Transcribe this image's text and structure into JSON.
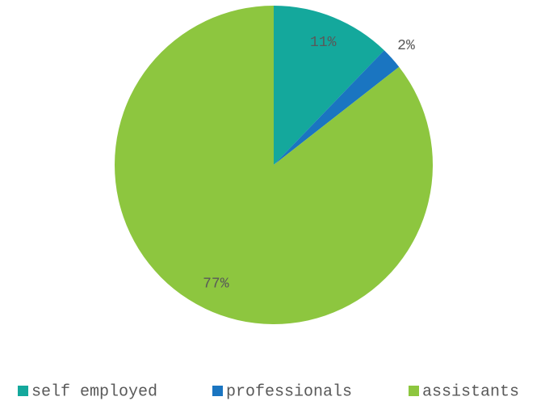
{
  "chart_data": {
    "type": "pie",
    "categories": [
      "self employed",
      "professionals",
      "assistants"
    ],
    "values": [
      11,
      2,
      77
    ],
    "value_labels": [
      "11%",
      "2%",
      "77%"
    ],
    "colors": [
      "#14a89c",
      "#1a75c1",
      "#8dc63f"
    ],
    "legend": "bottom"
  }
}
